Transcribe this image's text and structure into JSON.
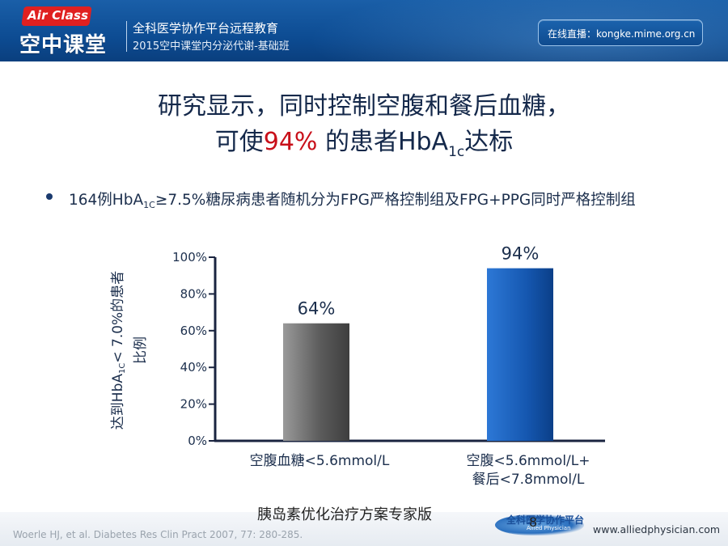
{
  "header": {
    "logo_en": "Air Class",
    "logo_cn": "空中课堂",
    "line1": "全科医学协作平台远程教育",
    "line2": "2015空中课堂内分泌代谢-基础班",
    "live": "在线直播：kongke.mime.org.cn"
  },
  "slide": {
    "title_line1": "研究显示，同时控制空腹和餐后血糖，",
    "title_line2_pre": "可使",
    "title_line2_highlight": "94%",
    "title_line2_mid": " 的患者HbA",
    "title_line2_sub": "1c",
    "title_line2_post": "达标",
    "bullet_pre": "164例HbA",
    "bullet_sub": "1C",
    "bullet_post": "≥7.5%糖尿病患者随机分为FPG严格控制组及FPG+PPG同时严格控制组"
  },
  "chart_data": {
    "type": "bar",
    "ylabel_pre": "达到HbA",
    "ylabel_sub": "1C",
    "ylabel_post": "< 7.0%的患者比例",
    "yticks": [
      "0%",
      "20%",
      "40%",
      "60%",
      "80%",
      "100%"
    ],
    "ylim": [
      0,
      100
    ],
    "categories": [
      [
        "空腹血糖<5.6mmol/L"
      ],
      [
        "空腹<5.6mmol/L+",
        "餐后<7.8mmol/L"
      ]
    ],
    "values": [
      64,
      94
    ],
    "value_labels": [
      "64%",
      "94%"
    ],
    "colors": [
      "#6a6a6a",
      "#1d5fb8"
    ]
  },
  "footer": {
    "reference": "Woerle HJ, et al. Diabetes Res Clin Pract 2007, 77: 280-285.",
    "watermark": "胰岛素优化治疗方案专家版",
    "page_number": "8",
    "logo_text": "全科医学协作平台",
    "logo_sub": "Allied Physician",
    "url": "www.alliedphysician.com"
  }
}
